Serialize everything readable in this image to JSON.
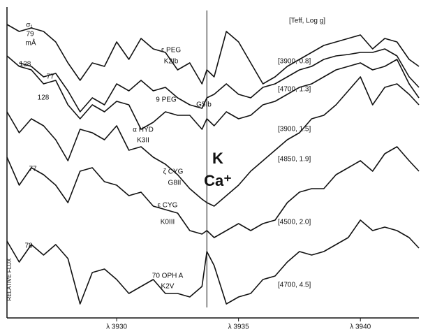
{
  "chart_data": {
    "type": "line",
    "y_label": "RELATIVE FLUX",
    "header": "[Teff, Log g]",
    "line_label": "K",
    "ion_label": "Ca⁺",
    "ew_unit": "mÅ",
    "ew_symbol": "σ₁",
    "marker_x": 3933.7,
    "xlim": [
      3925.5,
      3942.4
    ],
    "xticks": [
      {
        "value": 3930,
        "label": "λ 3930"
      },
      {
        "value": 3935,
        "label": "λ 3935"
      },
      {
        "value": 3940,
        "label": "λ 3940"
      }
    ],
    "ylim": [
      0,
      445
    ],
    "color": "#111111",
    "x": [
      3925.5,
      3926,
      3926.5,
      3927,
      3927.5,
      3928,
      3928.5,
      3929,
      3929.5,
      3930,
      3930.5,
      3931,
      3931.5,
      3932,
      3932.5,
      3933,
      3933.5,
      3933.7,
      3934,
      3934.5,
      3935,
      3935.5,
      3936,
      3936.5,
      3937,
      3937.5,
      3938,
      3938.5,
      3939,
      3939.5,
      3940,
      3940.5,
      3941,
      3941.5,
      3942,
      3942.4
    ],
    "series": [
      {
        "name": "ε PEG",
        "sptype": "K2Ib",
        "params": "[3900, 0.8]",
        "ew": "79",
        "values": [
          420,
          410,
          415,
          410,
          395,
          365,
          340,
          365,
          360,
          395,
          370,
          400,
          385,
          380,
          355,
          365,
          335,
          355,
          345,
          410,
          395,
          365,
          335,
          345,
          360,
          370,
          380,
          390,
          395,
          400,
          405,
          385,
          400,
          395,
          370,
          360
        ]
      },
      {
        "name": "9 PEG",
        "sptype": "G5Ib",
        "params": "[4700, 1.3]",
        "ew": "128",
        "values": [
          null,
          365,
          360,
          345,
          350,
          325,
          295,
          315,
          305,
          335,
          325,
          340,
          325,
          330,
          315,
          305,
          300,
          315,
          320,
          335,
          320,
          315,
          330,
          335,
          345,
          355,
          360,
          370,
          375,
          377,
          380,
          380,
          385,
          375,
          345,
          330
        ]
      },
      {
        "name": "α HYD",
        "sptype": "K3II",
        "params": "[3900, 1.5]",
        "ew": "77",
        "values": [
          375,
          360,
          355,
          335,
          340,
          305,
          285,
          305,
          295,
          310,
          305,
          270,
          280,
          295,
          290,
          290,
          270,
          285,
          275,
          295,
          285,
          290,
          305,
          310,
          320,
          330,
          335,
          345,
          355,
          360,
          365,
          355,
          360,
          370,
          335,
          315
        ]
      },
      {
        "name": "ζ CYG",
        "sptype": "G8II",
        "params": "[4850, 1.9]",
        "ew": "128",
        "values": [
          295,
          265,
          285,
          275,
          255,
          225,
          270,
          265,
          255,
          275,
          240,
          245,
          230,
          220,
          205,
          185,
          170,
          165,
          160,
          175,
          190,
          210,
          225,
          240,
          255,
          265,
          285,
          290,
          305,
          325,
          345,
          305,
          330,
          335,
          320,
          305
        ]
      },
      {
        "name": "ε CYG",
        "sptype": "K0III",
        "params": "[4500, 2.0]",
        "ew": "77",
        "values": [
          230,
          190,
          215,
          205,
          190,
          165,
          210,
          215,
          195,
          190,
          175,
          180,
          160,
          155,
          150,
          125,
          120,
          125,
          115,
          125,
          135,
          125,
          135,
          140,
          165,
          180,
          185,
          185,
          205,
          215,
          225,
          210,
          235,
          245,
          225,
          210
        ]
      },
      {
        "name": "70 OPH A",
        "sptype": "K2V",
        "params": "[4700, 4.5]",
        "ew": "78",
        "values": [
          110,
          80,
          105,
          90,
          105,
          85,
          20,
          65,
          70,
          55,
          35,
          45,
          55,
          35,
          35,
          30,
          45,
          95,
          75,
          20,
          30,
          35,
          55,
          60,
          80,
          95,
          90,
          95,
          105,
          115,
          140,
          125,
          130,
          125,
          115,
          100
        ]
      }
    ]
  }
}
